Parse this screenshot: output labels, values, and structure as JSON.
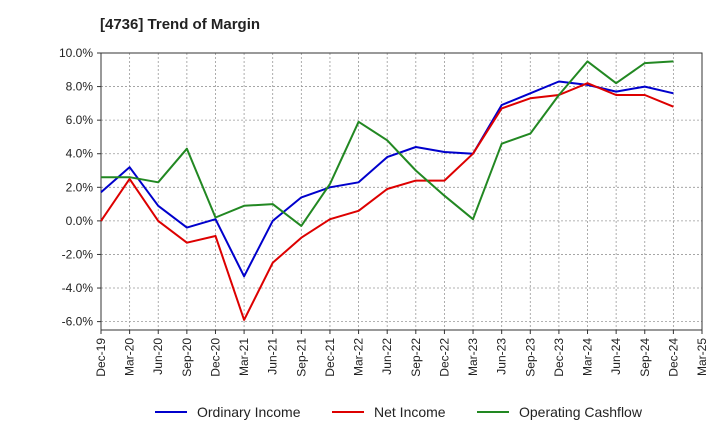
{
  "chart_data": {
    "type": "line",
    "title": "[4736]  Trend of Margin",
    "x": [
      "Dec-19",
      "Mar-20",
      "Jun-20",
      "Sep-20",
      "Dec-20",
      "Mar-21",
      "Jun-21",
      "Sep-21",
      "Dec-21",
      "Mar-22",
      "Jun-22",
      "Sep-22",
      "Dec-22",
      "Mar-23",
      "Jun-23",
      "Sep-23",
      "Dec-23",
      "Mar-24",
      "Jun-24",
      "Sep-24",
      "Dec-24",
      "Mar-25"
    ],
    "ylim": [
      -6.5,
      10.0
    ],
    "yticks": [
      -6.0,
      -4.0,
      -2.0,
      0.0,
      2.0,
      4.0,
      6.0,
      8.0,
      10.0
    ],
    "ytick_labels": [
      "-6.0%",
      "-4.0%",
      "-2.0%",
      "0.0%",
      "2.0%",
      "4.0%",
      "6.0%",
      "8.0%",
      "10.0%"
    ],
    "grid": true,
    "legend_position": "bottom",
    "series": [
      {
        "name": "Ordinary Income",
        "color": "#0000cc",
        "values": [
          1.7,
          3.2,
          0.9,
          -0.4,
          0.1,
          -3.3,
          0.0,
          1.4,
          2.0,
          2.3,
          3.8,
          4.4,
          4.1,
          4.0,
          6.9,
          7.6,
          8.3,
          8.1,
          7.7,
          8.0,
          7.6,
          null
        ]
      },
      {
        "name": "Net Income",
        "color": "#dd0000",
        "values": [
          0.0,
          2.5,
          0.0,
          -1.3,
          -0.9,
          -5.9,
          -2.5,
          -1.0,
          0.1,
          0.6,
          1.9,
          2.4,
          2.4,
          4.0,
          6.7,
          7.3,
          7.5,
          8.2,
          7.5,
          7.5,
          6.8,
          null
        ]
      },
      {
        "name": "Operating Cashflow",
        "color": "#228822",
        "values": [
          2.6,
          2.6,
          2.3,
          4.3,
          0.2,
          0.9,
          1.0,
          -0.3,
          2.2,
          5.9,
          4.8,
          3.0,
          1.5,
          0.1,
          4.6,
          5.2,
          7.5,
          9.5,
          8.2,
          9.4,
          9.5,
          null
        ]
      }
    ]
  }
}
